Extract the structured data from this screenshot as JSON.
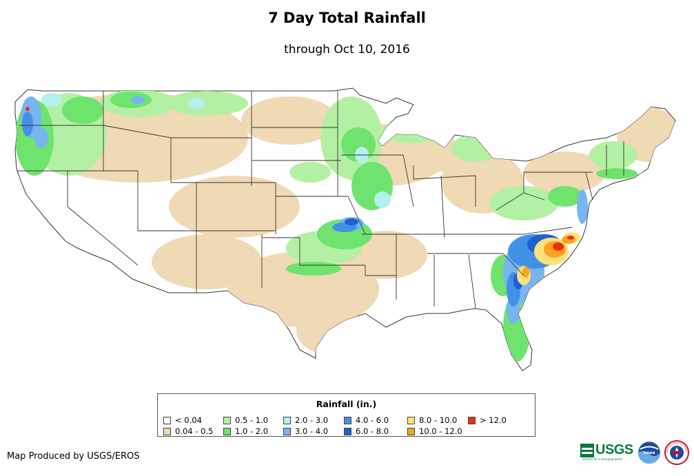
{
  "title": "7 Day Total Rainfall",
  "subtitle": "through Oct 10, 2016",
  "legend": {
    "title": "Rainfall (in.)",
    "items": [
      {
        "label": "< 0.04",
        "color": "#ffffff"
      },
      {
        "label": "0.04 - 0.5",
        "color": "#f0d9b5"
      },
      {
        "label": "0.5 - 1.0",
        "color": "#b4f0a4"
      },
      {
        "label": "1.0 - 2.0",
        "color": "#6ee46e"
      },
      {
        "label": "2.0 - 3.0",
        "color": "#b4f0f0"
      },
      {
        "label": "3.0 - 4.0",
        "color": "#78b4f0"
      },
      {
        "label": "4.0 - 6.0",
        "color": "#4191e6"
      },
      {
        "label": "6.0 - 8.0",
        "color": "#1e5fd2"
      },
      {
        "label": "8.0 - 10.0",
        "color": "#ffe178"
      },
      {
        "label": "10.0 - 12.0",
        "color": "#ffa01e"
      },
      {
        "label": "> 12.0",
        "color": "#e63214"
      }
    ]
  },
  "credit": "Map Produced by USGS/EROS",
  "logos": {
    "usgs": "USGS",
    "usgs_tagline": "science for a changing world",
    "noaa": "noaa",
    "nws": "NATIONAL WEATHER SERVICE"
  }
}
